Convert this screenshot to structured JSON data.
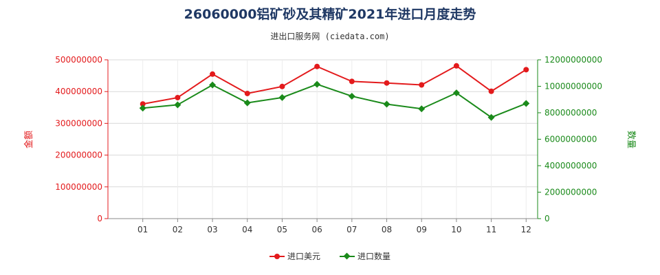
{
  "chart_data": {
    "type": "line",
    "title": "26060000铝矿砂及其精矿2021年进口月度走势",
    "subtitle": "进出口服务网 (ciedata.com)",
    "categories": [
      "01",
      "02",
      "03",
      "04",
      "05",
      "06",
      "07",
      "08",
      "09",
      "10",
      "11",
      "12"
    ],
    "y_left": {
      "label": "金额",
      "ylim": [
        0,
        500000000
      ],
      "ticks": [
        "0",
        "100000000",
        "200000000",
        "300000000",
        "400000000",
        "500000000"
      ],
      "color": "#e31a1c"
    },
    "y_right": {
      "label": "数量",
      "ylim": [
        0,
        12000000000
      ],
      "ticks": [
        "0",
        "2000000000",
        "4000000000",
        "6000000000",
        "8000000000",
        "10000000000",
        "12000000000"
      ],
      "color": "#1a8a1a"
    },
    "series": [
      {
        "name": "进口美元",
        "axis": "left",
        "color": "#e31a1c",
        "marker": "circle",
        "values": [
          361000000,
          381000000,
          455000000,
          394000000,
          416000000,
          479000000,
          432000000,
          427000000,
          421000000,
          481000000,
          401000000,
          469000000
        ]
      },
      {
        "name": "进口数量",
        "axis": "right",
        "color": "#1a8a1a",
        "marker": "diamond",
        "values": [
          8350000000,
          8600000000,
          10100000000,
          8750000000,
          9150000000,
          10150000000,
          9250000000,
          8650000000,
          8300000000,
          9500000000,
          7650000000,
          8700000000
        ]
      }
    ],
    "grid": true,
    "legend_position": "bottom"
  }
}
